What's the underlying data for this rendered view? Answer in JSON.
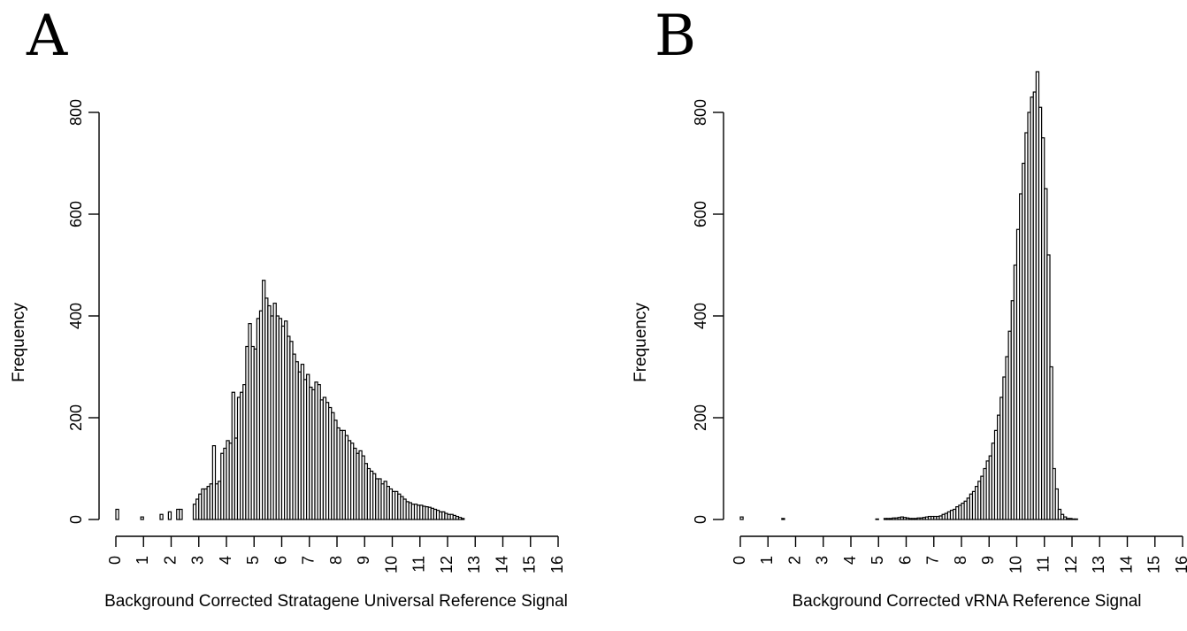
{
  "chart_data": [
    {
      "type": "bar",
      "panel_label": "A",
      "xlabel": "Background Corrected Stratagene Universal Reference Signal",
      "ylabel": "Frequency",
      "xlim": [
        0,
        16
      ],
      "ylim": [
        0,
        800
      ],
      "xticks": [
        "0",
        "1",
        "2",
        "3",
        "4",
        "5",
        "6",
        "7",
        "8",
        "9",
        "10",
        "11",
        "12",
        "13",
        "14",
        "15",
        "16"
      ],
      "yticks": [
        "0",
        "200",
        "400",
        "600",
        "800"
      ],
      "bin_width": 0.1,
      "x_start": 0,
      "values": [
        20,
        0,
        0,
        0,
        0,
        0,
        0,
        0,
        0,
        5,
        0,
        0,
        0,
        0,
        0,
        0,
        10,
        0,
        0,
        15,
        0,
        0,
        20,
        20,
        0,
        0,
        0,
        0,
        30,
        40,
        50,
        60,
        60,
        65,
        70,
        145,
        70,
        75,
        130,
        140,
        155,
        150,
        250,
        160,
        240,
        250,
        265,
        340,
        385,
        340,
        335,
        395,
        410,
        470,
        435,
        420,
        400,
        425,
        400,
        395,
        380,
        390,
        360,
        350,
        325,
        310,
        290,
        305,
        275,
        285,
        260,
        255,
        270,
        265,
        235,
        240,
        230,
        220,
        210,
        195,
        180,
        175,
        175,
        165,
        155,
        150,
        140,
        130,
        135,
        125,
        110,
        100,
        95,
        90,
        80,
        80,
        70,
        75,
        65,
        60,
        55,
        55,
        50,
        45,
        40,
        35,
        33,
        30,
        30,
        28,
        28,
        26,
        25,
        24,
        22,
        20,
        18,
        15,
        15,
        12,
        10,
        10,
        8,
        6,
        4,
        2
      ]
    },
    {
      "type": "bar",
      "panel_label": "B",
      "xlabel": "Background Corrected vRNA Reference Signal",
      "ylabel": "Frequency",
      "xlim": [
        0,
        16
      ],
      "ylim": [
        0,
        800
      ],
      "xticks": [
        "0",
        "1",
        "2",
        "3",
        "4",
        "5",
        "6",
        "7",
        "8",
        "9",
        "10",
        "11",
        "12",
        "13",
        "14",
        "15",
        "16"
      ],
      "yticks": [
        "0",
        "200",
        "400",
        "600",
        "800"
      ],
      "bin_width": 0.1,
      "x_start": 0,
      "values": [
        5,
        0,
        0,
        0,
        0,
        0,
        0,
        0,
        0,
        0,
        0,
        0,
        0,
        0,
        0,
        2,
        0,
        0,
        0,
        0,
        0,
        0,
        0,
        0,
        0,
        0,
        0,
        0,
        0,
        0,
        0,
        0,
        0,
        0,
        0,
        0,
        0,
        0,
        0,
        0,
        0,
        0,
        0,
        0,
        0,
        0,
        0,
        0,
        0,
        1,
        0,
        0,
        2,
        2,
        2,
        3,
        3,
        4,
        5,
        4,
        3,
        2,
        2,
        2,
        3,
        3,
        4,
        5,
        6,
        6,
        6,
        6,
        7,
        10,
        12,
        15,
        18,
        20,
        25,
        28,
        32,
        36,
        42,
        50,
        55,
        65,
        75,
        85,
        100,
        115,
        125,
        150,
        175,
        205,
        240,
        280,
        320,
        370,
        430,
        500,
        570,
        640,
        700,
        760,
        800,
        830,
        840,
        880,
        810,
        750,
        650,
        520,
        300,
        100,
        60,
        20,
        10,
        5,
        2,
        2,
        1,
        1,
        0,
        0,
        0,
        0,
        0,
        0,
        0,
        0,
        0,
        0,
        0
      ]
    }
  ]
}
